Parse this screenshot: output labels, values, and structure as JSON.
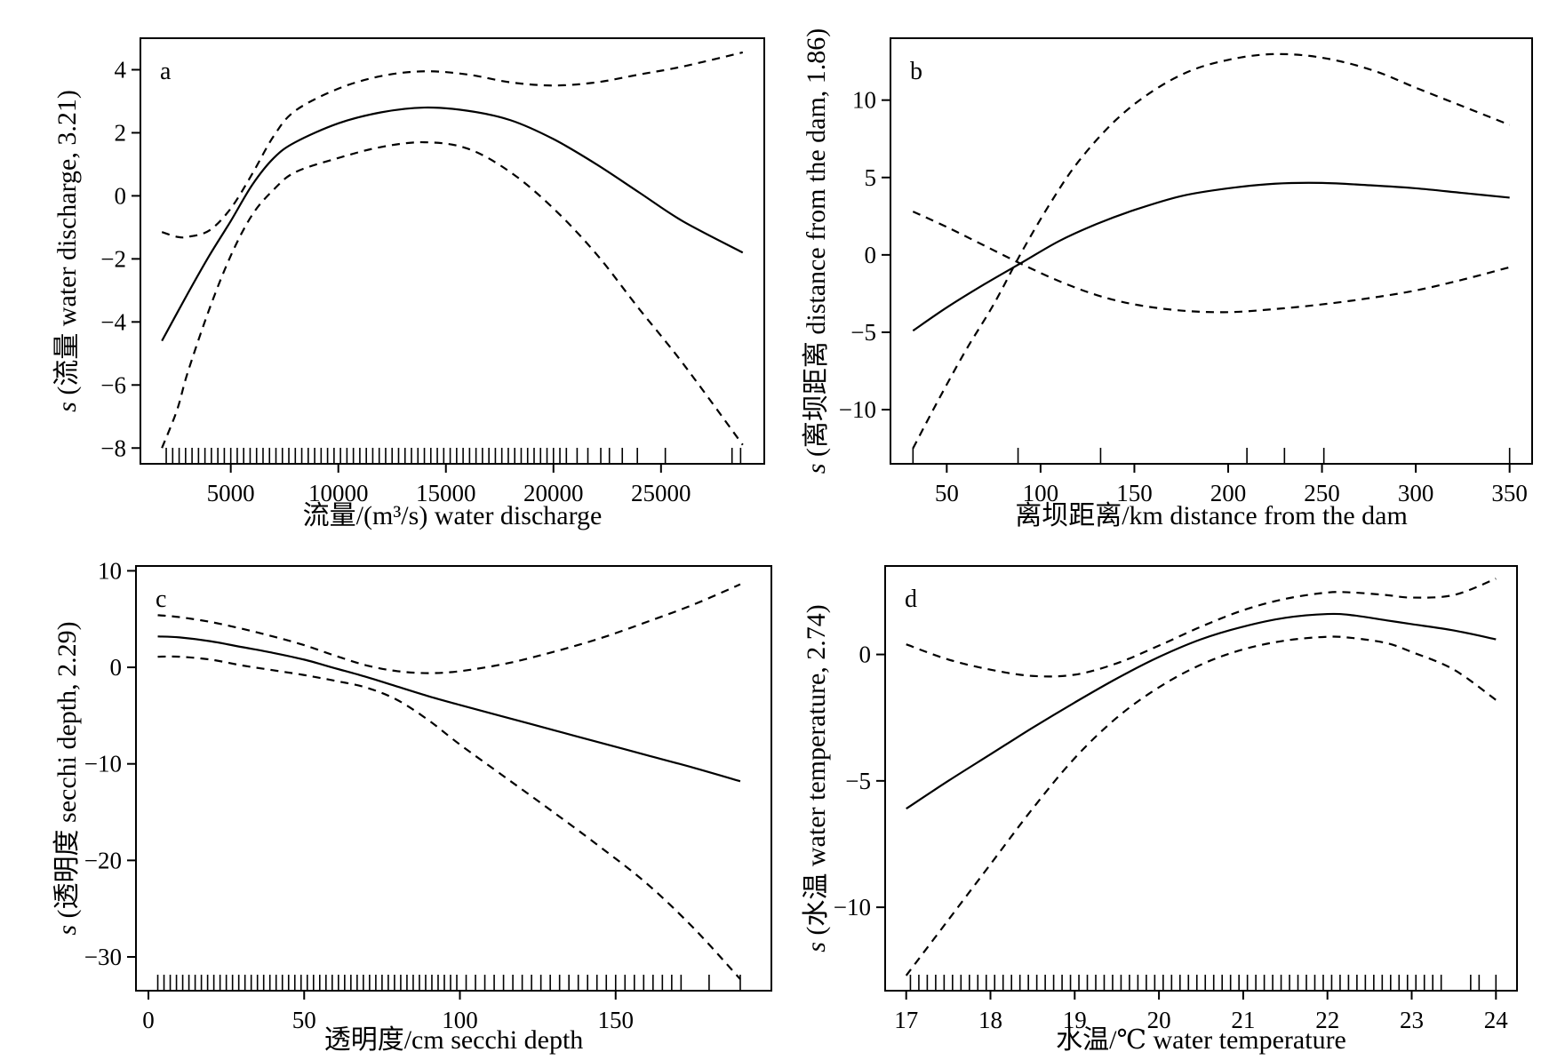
{
  "chart_data": [
    {
      "type": "line",
      "panel_label": "a",
      "xlabel": "流量/(m³/s)  water discharge",
      "ylabel": "s (流量 water discharge, 3.21)",
      "xlim": [
        800,
        29800
      ],
      "ylim": [
        -8.5,
        5.0
      ],
      "xticks": [
        5000,
        10000,
        15000,
        20000,
        25000
      ],
      "yticks": [
        -8,
        -6,
        -4,
        -2,
        0,
        2,
        4
      ],
      "ytick_labels": [
        "−8",
        "−6",
        "−4",
        "−2",
        "0",
        "2",
        "4"
      ],
      "series": [
        {
          "role": "fit",
          "style": "solid",
          "x": [
            1800,
            3000,
            4000,
            5000,
            6000,
            7000,
            8000,
            10000,
            12000,
            14000,
            16000,
            18000,
            20000,
            22000,
            24000,
            26000,
            28800
          ],
          "y": [
            -4.6,
            -3.1,
            -1.9,
            -0.8,
            0.35,
            1.2,
            1.7,
            2.3,
            2.65,
            2.8,
            2.7,
            2.4,
            1.8,
            1.0,
            0.1,
            -0.8,
            -1.8
          ]
        },
        {
          "role": "upper",
          "style": "dashed",
          "x": [
            1800,
            2500,
            3000,
            4000,
            5000,
            6000,
            7000,
            8000,
            10000,
            12000,
            14000,
            16000,
            18000,
            20000,
            22000,
            24000,
            26000,
            28800
          ],
          "y": [
            -1.15,
            -1.3,
            -1.3,
            -1.1,
            -0.4,
            0.7,
            1.9,
            2.7,
            3.4,
            3.8,
            3.95,
            3.85,
            3.6,
            3.5,
            3.6,
            3.85,
            4.1,
            4.55
          ]
        },
        {
          "role": "lower",
          "style": "dashed",
          "x": [
            1800,
            2500,
            3000,
            4000,
            5000,
            6000,
            7000,
            8000,
            10000,
            12000,
            14000,
            16000,
            18000,
            20000,
            22000,
            24000,
            26000,
            28800
          ],
          "y": [
            -8.0,
            -6.8,
            -5.6,
            -3.6,
            -1.9,
            -0.6,
            0.2,
            0.75,
            1.2,
            1.55,
            1.7,
            1.5,
            0.75,
            -0.4,
            -1.85,
            -3.6,
            -5.3,
            -7.9
          ]
        }
      ],
      "rug": [
        2000,
        2300,
        2600,
        2900,
        3200,
        3500,
        3800,
        4100,
        4400,
        4700,
        5000,
        5300,
        5600,
        5900,
        6200,
        6500,
        6800,
        7100,
        7400,
        7700,
        8000,
        8300,
        8600,
        8900,
        9200,
        9500,
        9800,
        10100,
        10400,
        10700,
        11000,
        11300,
        11600,
        11900,
        12200,
        12500,
        12800,
        13100,
        13400,
        13700,
        14000,
        14300,
        14600,
        14900,
        15200,
        15500,
        15800,
        16100,
        16400,
        16700,
        17000,
        17300,
        17600,
        17900,
        18200,
        18500,
        18800,
        19100,
        19400,
        19700,
        20000,
        20300,
        20600,
        21100,
        21600,
        22200,
        22600,
        23200,
        23900,
        25200,
        28300,
        28700
      ]
    },
    {
      "type": "line",
      "panel_label": "b",
      "xlabel": "离坝距离/km  distance from the dam",
      "ylabel": "s (离坝距离  distance from the dam, 1.86)",
      "xlim": [
        20,
        362
      ],
      "ylim": [
        -13.5,
        14.0
      ],
      "xticks": [
        50,
        100,
        150,
        200,
        250,
        300,
        350
      ],
      "yticks": [
        -10,
        -5,
        0,
        5,
        10
      ],
      "ytick_labels": [
        "−10",
        "−5",
        "0",
        "5",
        "10"
      ],
      "series": [
        {
          "role": "fit",
          "style": "solid",
          "x": [
            32,
            50,
            70,
            90,
            110,
            130,
            150,
            175,
            200,
            225,
            250,
            275,
            300,
            325,
            350
          ],
          "y": [
            -4.9,
            -3.4,
            -1.9,
            -0.5,
            0.9,
            2.0,
            2.9,
            3.8,
            4.3,
            4.6,
            4.65,
            4.5,
            4.3,
            4.0,
            3.7
          ]
        },
        {
          "role": "upper",
          "style": "dashed",
          "x": [
            32,
            45,
            60,
            75,
            90,
            105,
            120,
            140,
            160,
            180,
            200,
            220,
            240,
            260,
            280,
            300,
            325,
            350
          ],
          "y": [
            -12.5,
            -9.5,
            -6.2,
            -3.2,
            0.2,
            3.3,
            6.0,
            8.7,
            10.6,
            11.9,
            12.6,
            12.95,
            12.9,
            12.5,
            11.8,
            10.8,
            9.6,
            8.4
          ]
        },
        {
          "role": "lower",
          "style": "dashed",
          "x": [
            32,
            50,
            70,
            90,
            110,
            130,
            150,
            175,
            200,
            225,
            250,
            275,
            300,
            325,
            350
          ],
          "y": [
            2.8,
            1.8,
            0.6,
            -0.6,
            -1.7,
            -2.6,
            -3.2,
            -3.6,
            -3.7,
            -3.5,
            -3.2,
            -2.8,
            -2.3,
            -1.6,
            -0.8
          ]
        }
      ],
      "rug": [
        32,
        88,
        132,
        210,
        230,
        251,
        350
      ]
    },
    {
      "type": "line",
      "panel_label": "c",
      "xlabel": "透明度/cm secchi depth",
      "ylabel": "s (透明度 secchi depth, 2.29)",
      "xlim": [
        -4,
        200
      ],
      "ylim": [
        -33.5,
        10.5
      ],
      "xticks": [
        0,
        50,
        100,
        150
      ],
      "yticks": [
        -30,
        -20,
        -10,
        0,
        10
      ],
      "ytick_labels": [
        "−30",
        "−20",
        "−10",
        "0",
        "10"
      ],
      "series": [
        {
          "role": "fit",
          "style": "solid",
          "x": [
            3,
            10,
            20,
            30,
            40,
            50,
            60,
            70,
            80,
            90,
            100,
            115,
            130,
            145,
            160,
            175,
            190
          ],
          "y": [
            3.2,
            3.1,
            2.7,
            2.1,
            1.5,
            0.8,
            -0.1,
            -1.0,
            -2.0,
            -3.0,
            -3.9,
            -5.2,
            -6.5,
            -7.8,
            -9.1,
            -10.4,
            -11.8
          ]
        },
        {
          "role": "upper",
          "style": "dashed",
          "x": [
            3,
            10,
            20,
            30,
            40,
            50,
            60,
            70,
            80,
            90,
            100,
            115,
            130,
            145,
            160,
            175,
            190
          ],
          "y": [
            5.4,
            5.2,
            4.7,
            4.0,
            3.2,
            2.3,
            1.2,
            0.2,
            -0.4,
            -0.6,
            -0.4,
            0.4,
            1.6,
            3.0,
            4.7,
            6.5,
            8.6
          ]
        },
        {
          "role": "lower",
          "style": "dashed",
          "x": [
            3,
            10,
            20,
            30,
            40,
            50,
            60,
            70,
            80,
            90,
            100,
            115,
            130,
            145,
            160,
            175,
            190
          ],
          "y": [
            1.1,
            1.1,
            0.8,
            0.2,
            -0.3,
            -0.8,
            -1.4,
            -2.1,
            -3.4,
            -5.5,
            -8.0,
            -11.5,
            -15.0,
            -18.6,
            -22.4,
            -27.0,
            -32.3
          ]
        }
      ],
      "rug": [
        3,
        5,
        7,
        9,
        11,
        13,
        15,
        17,
        19,
        21,
        23,
        25,
        27,
        29,
        31,
        33,
        35,
        37,
        39,
        41,
        43,
        45,
        47,
        49,
        51,
        53,
        55,
        57,
        59,
        61,
        63,
        65,
        67,
        69,
        71,
        73,
        75,
        77,
        79,
        81,
        83,
        85,
        87,
        89,
        91,
        93,
        95,
        97,
        99,
        102,
        105,
        108,
        111,
        114,
        117,
        120,
        123,
        126,
        129,
        132,
        135,
        138,
        141,
        144,
        147,
        150,
        153,
        156,
        159,
        162,
        165,
        168,
        171,
        180,
        190
      ]
    },
    {
      "type": "line",
      "panel_label": "d",
      "xlabel": "水温/℃ water temperature",
      "ylabel": "s (水温 water temperature, 2.74)",
      "xlim": [
        16.75,
        24.25
      ],
      "ylim": [
        -13.3,
        3.5
      ],
      "xticks": [
        17,
        18,
        19,
        20,
        21,
        22,
        23,
        24
      ],
      "yticks": [
        -10,
        -5,
        0
      ],
      "ytick_labels": [
        "−10",
        "−5",
        "0"
      ],
      "series": [
        {
          "role": "fit",
          "style": "solid",
          "x": [
            17.0,
            17.5,
            18.0,
            18.5,
            19.0,
            19.5,
            20.0,
            20.5,
            21.0,
            21.5,
            22.0,
            22.3,
            22.7,
            23.0,
            23.5,
            24.0
          ],
          "y": [
            -6.1,
            -5.0,
            -3.95,
            -2.9,
            -1.9,
            -0.95,
            -0.1,
            0.6,
            1.1,
            1.45,
            1.6,
            1.55,
            1.35,
            1.2,
            0.95,
            0.6
          ]
        },
        {
          "role": "upper",
          "style": "dashed",
          "x": [
            17.0,
            17.5,
            18.0,
            18.5,
            19.0,
            19.5,
            20.0,
            20.5,
            21.0,
            21.5,
            22.0,
            22.3,
            22.7,
            23.0,
            23.5,
            24.0
          ],
          "y": [
            0.4,
            -0.2,
            -0.6,
            -0.85,
            -0.8,
            -0.35,
            0.35,
            1.1,
            1.75,
            2.2,
            2.45,
            2.45,
            2.35,
            2.25,
            2.35,
            3.0
          ]
        },
        {
          "role": "lower",
          "style": "dashed",
          "x": [
            17.0,
            17.5,
            18.0,
            18.5,
            19.0,
            19.5,
            20.0,
            20.5,
            21.0,
            21.5,
            22.0,
            22.3,
            22.7,
            23.0,
            23.5,
            24.0
          ],
          "y": [
            -12.7,
            -10.5,
            -8.3,
            -6.1,
            -4.1,
            -2.5,
            -1.3,
            -0.4,
            0.2,
            0.55,
            0.7,
            0.65,
            0.45,
            0.1,
            -0.6,
            -1.8
          ]
        }
      ],
      "rug": [
        17.05,
        17.15,
        17.25,
        17.35,
        17.45,
        17.55,
        17.65,
        17.75,
        17.85,
        17.95,
        18.05,
        18.15,
        18.25,
        18.35,
        18.45,
        18.55,
        18.65,
        18.75,
        18.85,
        18.95,
        19.05,
        19.15,
        19.25,
        19.35,
        19.45,
        19.55,
        19.65,
        19.75,
        19.85,
        19.95,
        20.05,
        20.15,
        20.25,
        20.35,
        20.45,
        20.55,
        20.65,
        20.75,
        20.85,
        20.95,
        21.05,
        21.15,
        21.25,
        21.35,
        21.45,
        21.55,
        21.65,
        21.75,
        21.85,
        21.95,
        22.05,
        22.15,
        22.25,
        22.35,
        22.45,
        22.55,
        22.65,
        22.75,
        22.85,
        22.95,
        23.05,
        23.15,
        23.25,
        23.35,
        23.7,
        23.8,
        24.0
      ]
    }
  ]
}
